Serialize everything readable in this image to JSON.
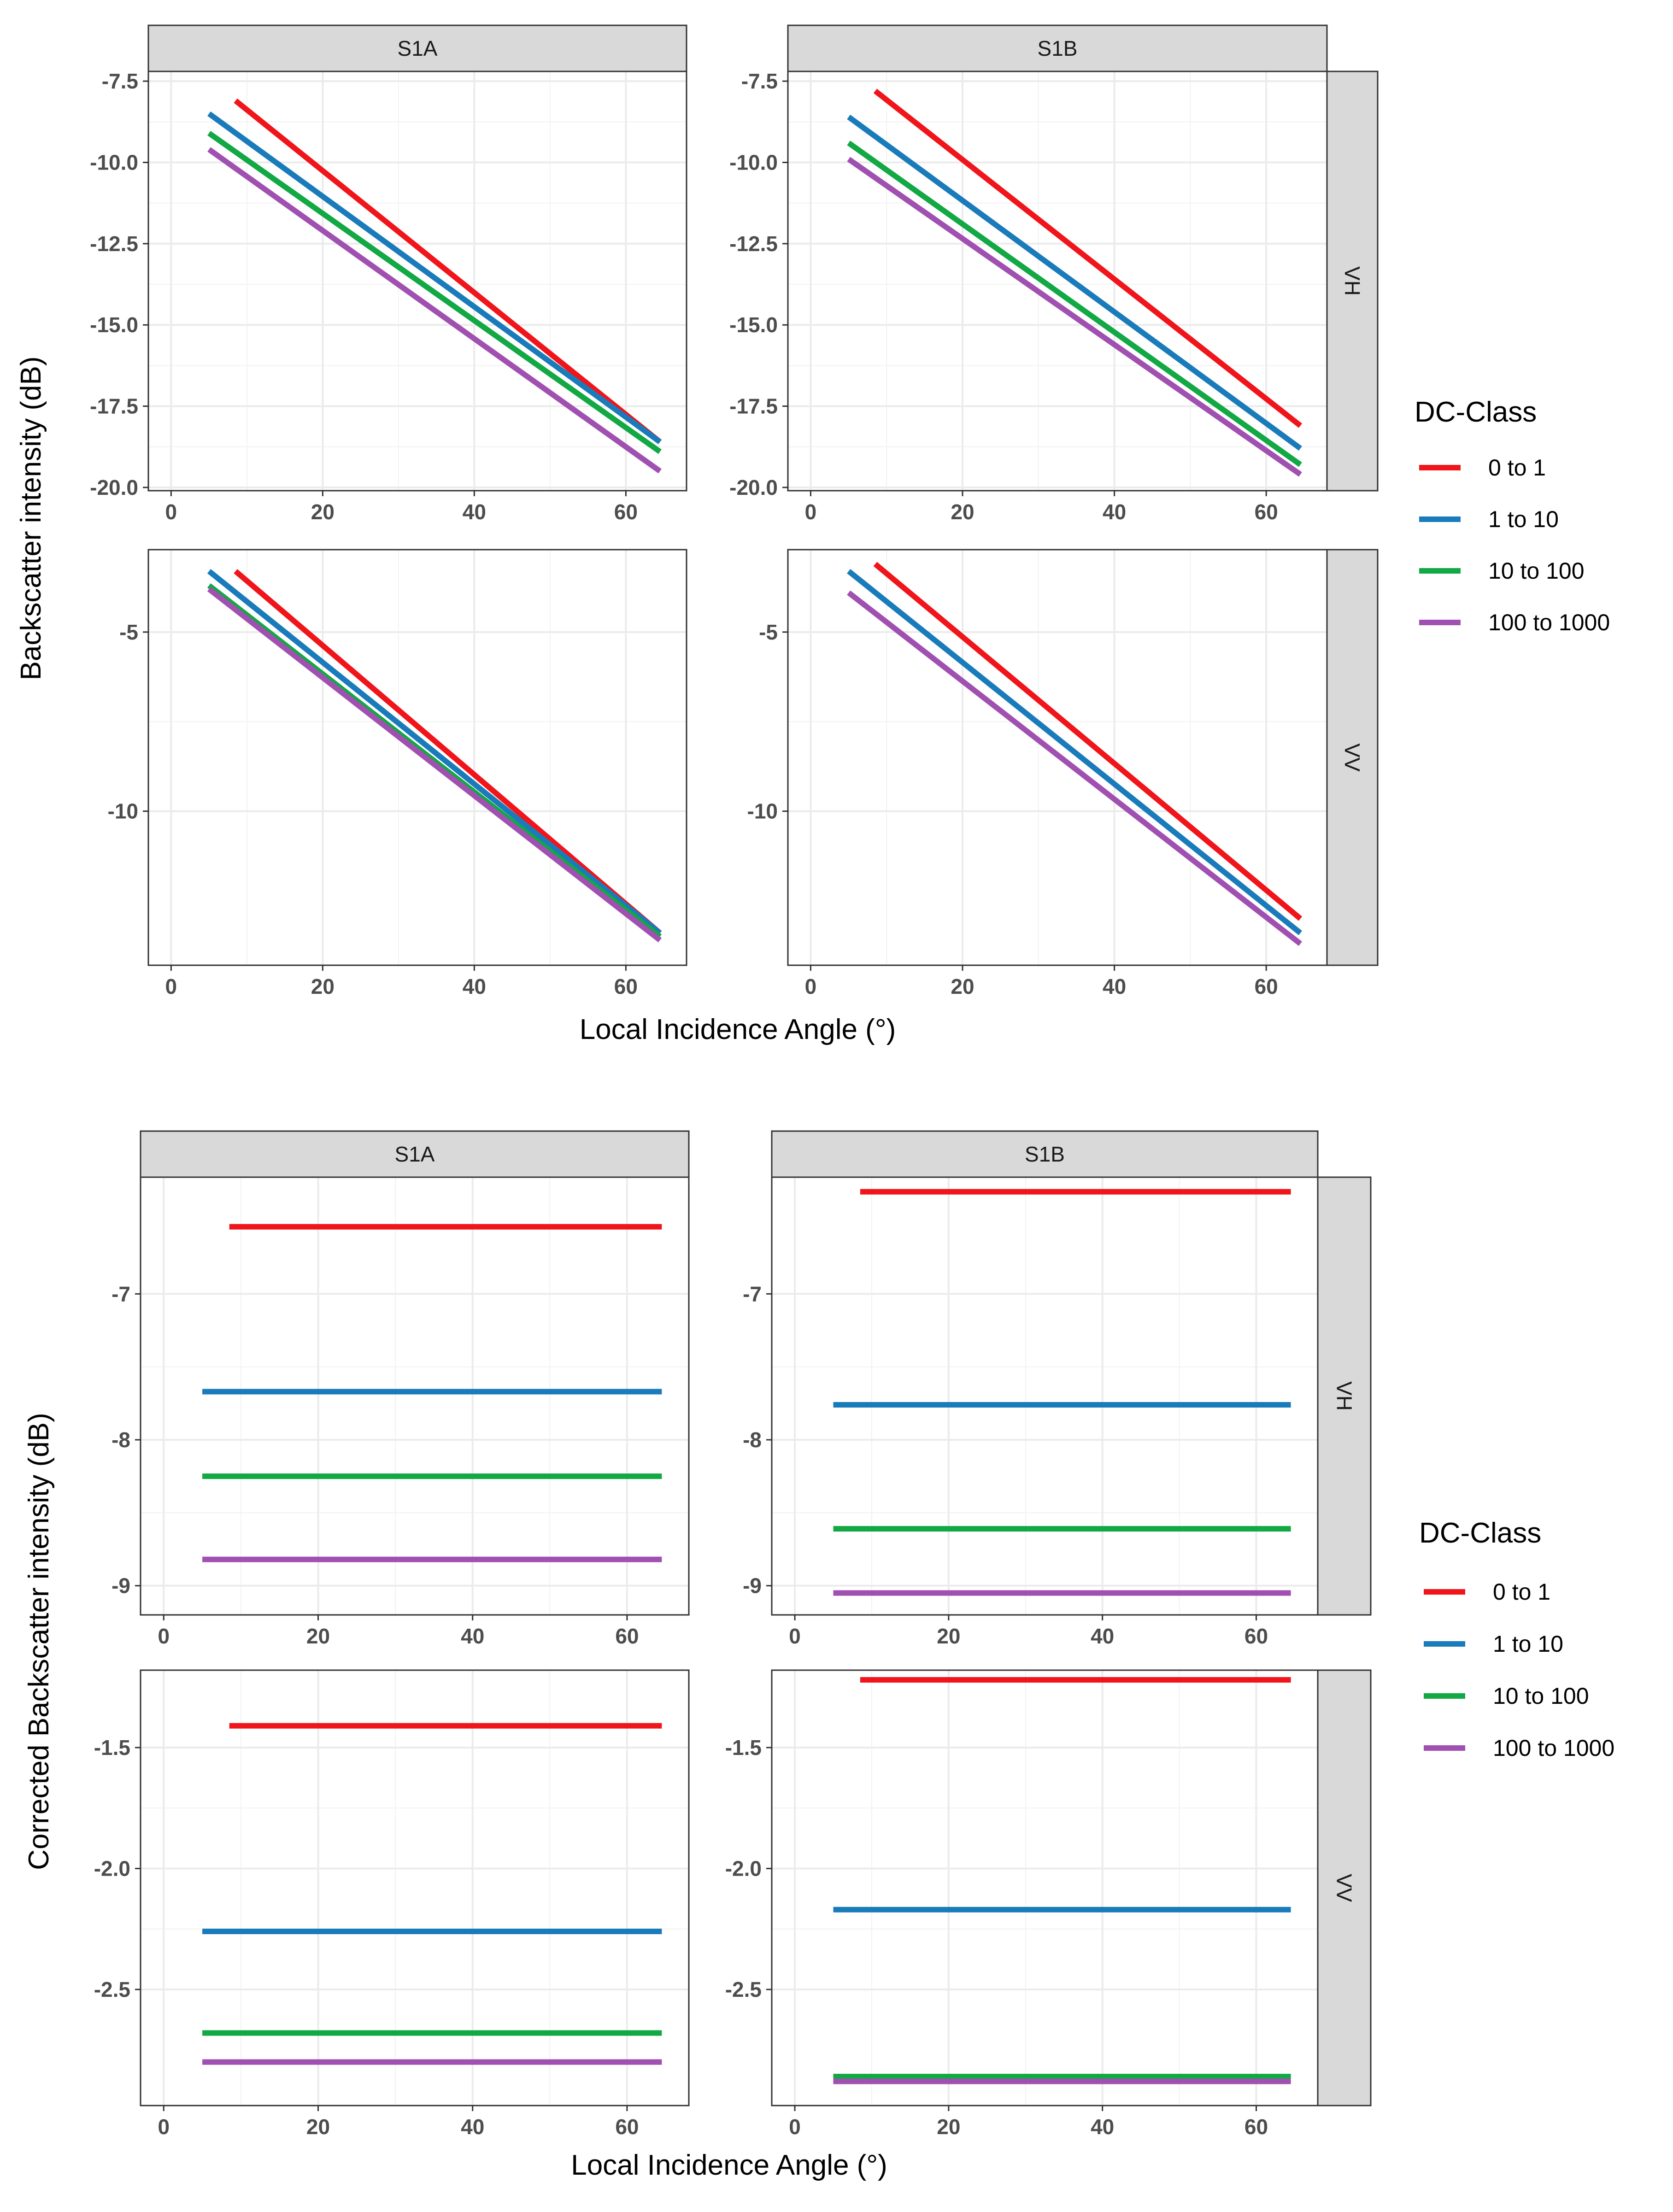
{
  "chart_data": [
    {
      "type": "line",
      "facet_columns": [
        "S1A",
        "S1B"
      ],
      "facet_rows": [
        "VH",
        "VV"
      ],
      "xlabel": "Local Incidence Angle (°)",
      "ylabel": "Backscatter intensity  (dB)",
      "x_ticks": [
        "0",
        "20",
        "40",
        "60"
      ],
      "xlim": [
        -3,
        68
      ],
      "legend_title": "DC-Class",
      "legend": [
        "0 to 1",
        "1 to 10",
        "10 to 100",
        "100 to 1000"
      ],
      "colors": [
        "#f0151b",
        "#1a7bbb",
        "#12a844",
        "#a050b0"
      ],
      "panels": [
        {
          "col": "S1A",
          "row": "VH",
          "ylim": [
            -20.1,
            -7.2
          ],
          "y_ticks": [
            "-7.5",
            "-10.0",
            "-12.5",
            "-15.0",
            "-17.5",
            "-20.0"
          ],
          "y_tick_values": [
            -7.5,
            -10.0,
            -12.5,
            -15.0,
            -17.5,
            -20.0
          ],
          "series": [
            {
              "name": "0 to 1",
              "x": [
                8.5,
                64.5
              ],
              "y": [
                -8.1,
                -18.6
              ]
            },
            {
              "name": "1 to 10",
              "x": [
                5,
                64.5
              ],
              "y": [
                -8.5,
                -18.6
              ]
            },
            {
              "name": "10 to 100",
              "x": [
                5,
                64.5
              ],
              "y": [
                -9.1,
                -18.9
              ]
            },
            {
              "name": "100 to 1000",
              "x": [
                5,
                64.5
              ],
              "y": [
                -9.6,
                -19.5
              ]
            }
          ]
        },
        {
          "col": "S1B",
          "row": "VH",
          "ylim": [
            -20.1,
            -7.2
          ],
          "y_ticks": [
            "-7.5",
            "-10.0",
            "-12.5",
            "-15.0",
            "-17.5",
            "-20.0"
          ],
          "y_tick_values": [
            -7.5,
            -10.0,
            -12.5,
            -15.0,
            -17.5,
            -20.0
          ],
          "series": [
            {
              "name": "0 to 1",
              "x": [
                8.5,
                64.5
              ],
              "y": [
                -7.8,
                -18.1
              ]
            },
            {
              "name": "1 to 10",
              "x": [
                5,
                64.5
              ],
              "y": [
                -8.6,
                -18.8
              ]
            },
            {
              "name": "10 to 100",
              "x": [
                5,
                64.5
              ],
              "y": [
                -9.4,
                -19.3
              ]
            },
            {
              "name": "100 to 1000",
              "x": [
                5,
                64.5
              ],
              "y": [
                -9.9,
                -19.6
              ]
            }
          ]
        },
        {
          "col": "S1A",
          "row": "VV",
          "ylim": [
            -14.3,
            -2.7
          ],
          "y_ticks": [
            "-5",
            "-10"
          ],
          "y_tick_values": [
            -5,
            -10
          ],
          "series": [
            {
              "name": "0 to 1",
              "x": [
                8.5,
                64.5
              ],
              "y": [
                -3.3,
                -13.4
              ]
            },
            {
              "name": "1 to 10",
              "x": [
                5,
                64.5
              ],
              "y": [
                -3.3,
                -13.4
              ]
            },
            {
              "name": "10 to 100",
              "x": [
                5,
                64.5
              ],
              "y": [
                -3.7,
                -13.5
              ]
            },
            {
              "name": "100 to 1000",
              "x": [
                5,
                64.5
              ],
              "y": [
                -3.8,
                -13.6
              ]
            }
          ]
        },
        {
          "col": "S1B",
          "row": "VV",
          "ylim": [
            -14.3,
            -2.7
          ],
          "y_ticks": [
            "-5",
            "-10"
          ],
          "y_tick_values": [
            -5,
            -10
          ],
          "series": [
            {
              "name": "0 to 1",
              "x": [
                8.5,
                64.5
              ],
              "y": [
                -3.1,
                -13.0
              ]
            },
            {
              "name": "1 to 10",
              "x": [
                5,
                64.5
              ],
              "y": [
                -3.3,
                -13.4
              ]
            },
            {
              "name": "100 to 1000",
              "x": [
                5,
                64.5
              ],
              "y": [
                -3.9,
                -13.7
              ]
            }
          ]
        }
      ]
    },
    {
      "type": "line",
      "facet_columns": [
        "S1A",
        "S1B"
      ],
      "facet_rows": [
        "VH",
        "VV"
      ],
      "xlabel": "Local Incidence Angle (°)",
      "ylabel": "Corrected Backscatter intensity  (dB)",
      "x_ticks": [
        "0",
        "20",
        "40",
        "60"
      ],
      "xlim": [
        -3,
        68
      ],
      "legend_title": "DC-Class",
      "legend": [
        "0 to 1",
        "1 to 10",
        "10 to 100",
        "100 to 1000"
      ],
      "colors": [
        "#f0151b",
        "#1a7bbb",
        "#12a844",
        "#a050b0"
      ],
      "panels": [
        {
          "col": "S1A",
          "row": "VH",
          "ylim": [
            -9.2,
            -6.2
          ],
          "y_ticks": [
            "-7",
            "-8",
            "-9"
          ],
          "y_tick_values": [
            -7,
            -8,
            -9
          ],
          "series": [
            {
              "name": "0 to 1",
              "x": [
                8.5,
                64.5
              ],
              "y": [
                -6.54,
                -6.54
              ]
            },
            {
              "name": "1 to 10",
              "x": [
                5,
                64.5
              ],
              "y": [
                -7.67,
                -7.67
              ]
            },
            {
              "name": "10 to 100",
              "x": [
                5,
                64.5
              ],
              "y": [
                -8.25,
                -8.25
              ]
            },
            {
              "name": "100 to 1000",
              "x": [
                5,
                64.5
              ],
              "y": [
                -8.82,
                -8.82
              ]
            }
          ]
        },
        {
          "col": "S1B",
          "row": "VH",
          "ylim": [
            -9.2,
            -6.2
          ],
          "y_ticks": [
            "-7",
            "-8",
            "-9"
          ],
          "y_tick_values": [
            -7,
            -8,
            -9
          ],
          "series": [
            {
              "name": "0 to 1",
              "x": [
                8.5,
                64.5
              ],
              "y": [
                -6.3,
                -6.3
              ]
            },
            {
              "name": "1 to 10",
              "x": [
                5,
                64.5
              ],
              "y": [
                -7.76,
                -7.76
              ]
            },
            {
              "name": "10 to 100",
              "x": [
                5,
                64.5
              ],
              "y": [
                -8.61,
                -8.61
              ]
            },
            {
              "name": "100 to 1000",
              "x": [
                5,
                64.5
              ],
              "y": [
                -9.05,
                -9.05
              ]
            }
          ]
        },
        {
          "col": "S1A",
          "row": "VV",
          "ylim": [
            -2.98,
            -1.18
          ],
          "y_ticks": [
            "-1.5",
            "-2.0",
            "-2.5"
          ],
          "y_tick_values": [
            -1.5,
            -2.0,
            -2.5
          ],
          "series": [
            {
              "name": "0 to 1",
              "x": [
                8.5,
                64.5
              ],
              "y": [
                -1.41,
                -1.41
              ]
            },
            {
              "name": "1 to 10",
              "x": [
                5,
                64.5
              ],
              "y": [
                -2.26,
                -2.26
              ]
            },
            {
              "name": "10 to 100",
              "x": [
                5,
                64.5
              ],
              "y": [
                -2.68,
                -2.68
              ]
            },
            {
              "name": "100 to 1000",
              "x": [
                5,
                64.5
              ],
              "y": [
                -2.8,
                -2.8
              ]
            }
          ]
        },
        {
          "col": "S1B",
          "row": "VV",
          "ylim": [
            -2.98,
            -1.18
          ],
          "y_ticks": [
            "-1.5",
            "-2.0",
            "-2.5"
          ],
          "y_tick_values": [
            -1.5,
            -2.0,
            -2.5
          ],
          "series": [
            {
              "name": "0 to 1",
              "x": [
                8.5,
                64.5
              ],
              "y": [
                -1.22,
                -1.22
              ]
            },
            {
              "name": "1 to 10",
              "x": [
                5,
                64.5
              ],
              "y": [
                -2.17,
                -2.17
              ]
            },
            {
              "name": "10 to 100",
              "x": [
                5,
                64.5
              ],
              "y": [
                -2.86,
                -2.86
              ]
            },
            {
              "name": "100 to 1000",
              "x": [
                5,
                64.5
              ],
              "y": [
                -2.88,
                -2.88
              ]
            }
          ]
        }
      ]
    }
  ]
}
